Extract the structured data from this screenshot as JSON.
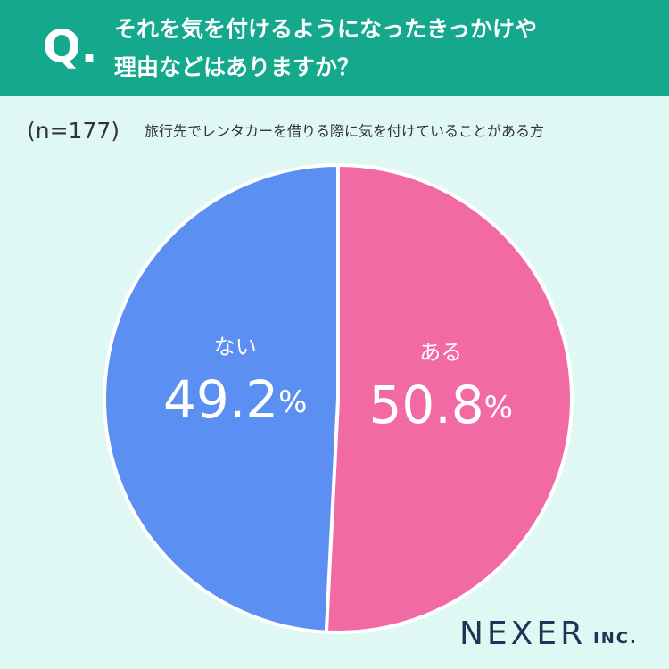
{
  "chart_data": {
    "type": "pie",
    "title_prefix": "Q.",
    "title": [
      "それを気を付けるようになったきっかけや",
      "理由などはありますか？"
    ],
    "sample_size": "(n=177)",
    "subtitle": "旅行先でレンタカーを借りる際に気を付けていることがある方",
    "categories": [
      "ある",
      "ない"
    ],
    "values": [
      50.8,
      49.2
    ],
    "value_labels": [
      "50.8%",
      "49.2%"
    ],
    "colors": [
      "#f26aa3",
      "#5c8ff2"
    ]
  },
  "brand": {
    "name": "NEXER",
    "suffix": "INC."
  }
}
